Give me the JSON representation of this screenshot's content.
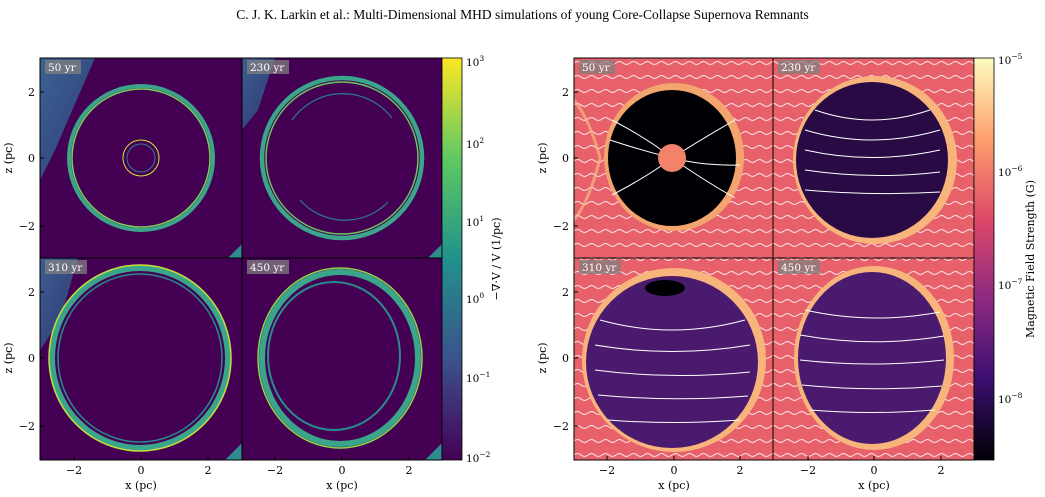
{
  "header": {
    "running_head": "C. J. K. Larkin  et al.: Multi-Dimensional MHD simulations of young Core-Collapse Supernova Remnants"
  },
  "figures": {
    "left": {
      "panels": [
        {
          "time_label": "50 yr"
        },
        {
          "time_label": "230 yr"
        },
        {
          "time_label": "310 yr"
        },
        {
          "time_label": "450 yr"
        }
      ],
      "colorbar": {
        "label": "−∇·V / V  (1/pc)",
        "ticks": [
          {
            "base": "10",
            "exp": "3"
          },
          {
            "base": "10",
            "exp": "2"
          },
          {
            "base": "10",
            "exp": "1"
          },
          {
            "base": "10",
            "exp": "0"
          },
          {
            "base": "10",
            "exp": "−1"
          },
          {
            "base": "10",
            "exp": "−2"
          }
        ],
        "colors": [
          "#440154",
          "#3b528b",
          "#21918c",
          "#5ec962",
          "#fde725"
        ]
      },
      "xlabel": "x  (pc)",
      "ylabel": "z  (pc)"
    },
    "right": {
      "panels": [
        {
          "time_label": "50 yr"
        },
        {
          "time_label": "230 yr"
        },
        {
          "time_label": "310 yr"
        },
        {
          "time_label": "450 yr"
        }
      ],
      "colorbar": {
        "label": "Magnetic Field Strength  (G)",
        "ticks": [
          {
            "base": "10",
            "exp": "−5"
          },
          {
            "base": "10",
            "exp": "−6"
          },
          {
            "base": "10",
            "exp": "−7"
          },
          {
            "base": "10",
            "exp": "−8"
          }
        ],
        "colors": [
          "#000004",
          "#3b0f70",
          "#8c2981",
          "#de4968",
          "#fe9f6d",
          "#fcfdbf"
        ]
      },
      "xlabel": "x  (pc)",
      "ylabel": "z  (pc)"
    },
    "x_ticks": [
      "−2",
      "0",
      "2"
    ],
    "y_ticks": [
      "2",
      "0",
      "−2"
    ]
  }
}
